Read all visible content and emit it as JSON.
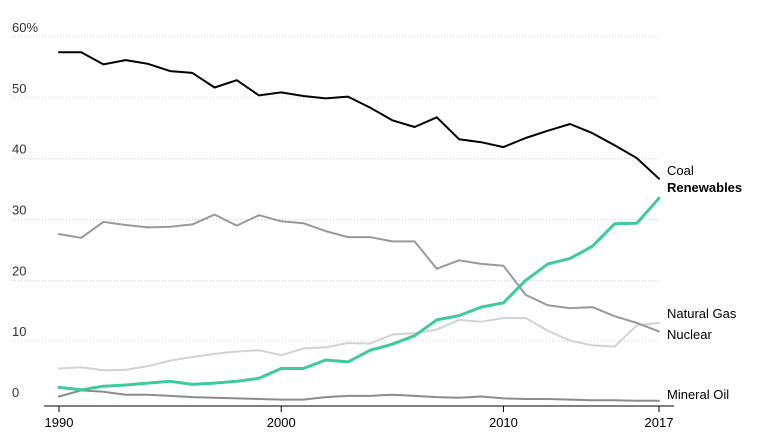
{
  "chart_data": {
    "type": "line",
    "x": [
      1990,
      1991,
      1992,
      1993,
      1994,
      1995,
      1996,
      1997,
      1998,
      1999,
      2000,
      2001,
      2002,
      2003,
      2004,
      2005,
      2006,
      2007,
      2008,
      2009,
      2010,
      2011,
      2012,
      2013,
      2014,
      2015,
      2016,
      2017
    ],
    "x_ticks": [
      "1990",
      "2000",
      "2010",
      "2017"
    ],
    "x_tick_values": [
      1990,
      2000,
      2010,
      2017
    ],
    "y_ticks": [
      "60%",
      "50",
      "40",
      "30",
      "20",
      "10",
      "0"
    ],
    "y_tick_values": [
      60,
      50,
      40,
      30,
      20,
      10,
      0
    ],
    "ylim": [
      0,
      60
    ],
    "grid": "horizontal dotted",
    "series": [
      {
        "name": "Coal",
        "color": "#000000",
        "bold": false,
        "values": [
          57.5,
          57.5,
          55.5,
          56.2,
          55.6,
          54.4,
          54.1,
          51.7,
          52.9,
          50.4,
          50.9,
          50.3,
          49.9,
          50.2,
          48.4,
          46.3,
          45.2,
          46.8,
          43.2,
          42.7,
          41.9,
          43.4,
          44.6,
          45.7,
          44.2,
          42.2,
          40.1,
          36.7
        ]
      },
      {
        "name": "Renewables",
        "color": "#3ecb9a",
        "bold": true,
        "values": [
          2.4,
          2.0,
          2.6,
          2.8,
          3.1,
          3.4,
          2.9,
          3.1,
          3.4,
          3.9,
          5.5,
          5.5,
          6.9,
          6.6,
          8.5,
          9.5,
          10.9,
          13.5,
          14.2,
          15.6,
          16.3,
          20.0,
          22.7,
          23.6,
          25.6,
          29.3,
          29.4,
          33.5
        ]
      },
      {
        "name": "Natural Gas",
        "color": "#d3d3d3",
        "bold": false,
        "values": [
          5.5,
          5.7,
          5.2,
          5.3,
          5.9,
          6.8,
          7.4,
          7.9,
          8.3,
          8.5,
          7.7,
          8.8,
          9.0,
          9.7,
          9.6,
          11.1,
          11.3,
          11.9,
          13.5,
          13.2,
          13.8,
          13.8,
          11.7,
          10.1,
          9.3,
          9.1,
          12.6,
          13.0
        ]
      },
      {
        "name": "Nuclear",
        "color": "#999999",
        "bold": false,
        "values": [
          27.6,
          27.0,
          29.6,
          29.1,
          28.7,
          28.8,
          29.2,
          30.8,
          29.0,
          30.7,
          29.7,
          29.4,
          28.1,
          27.1,
          27.1,
          26.4,
          26.4,
          21.9,
          23.3,
          22.7,
          22.4,
          17.6,
          15.9,
          15.4,
          15.6,
          14.1,
          13.0,
          11.6
        ]
      },
      {
        "name": "Mineral Oil",
        "color": "#8c8c8c",
        "bold": false,
        "values": [
          0.9,
          1.9,
          1.7,
          1.2,
          1.2,
          1.0,
          0.8,
          0.7,
          0.6,
          0.5,
          0.4,
          0.4,
          0.8,
          1.0,
          1.0,
          1.2,
          1.0,
          0.8,
          0.7,
          0.9,
          0.6,
          0.5,
          0.5,
          0.4,
          0.3,
          0.3,
          0.2,
          0.2
        ]
      }
    ]
  }
}
